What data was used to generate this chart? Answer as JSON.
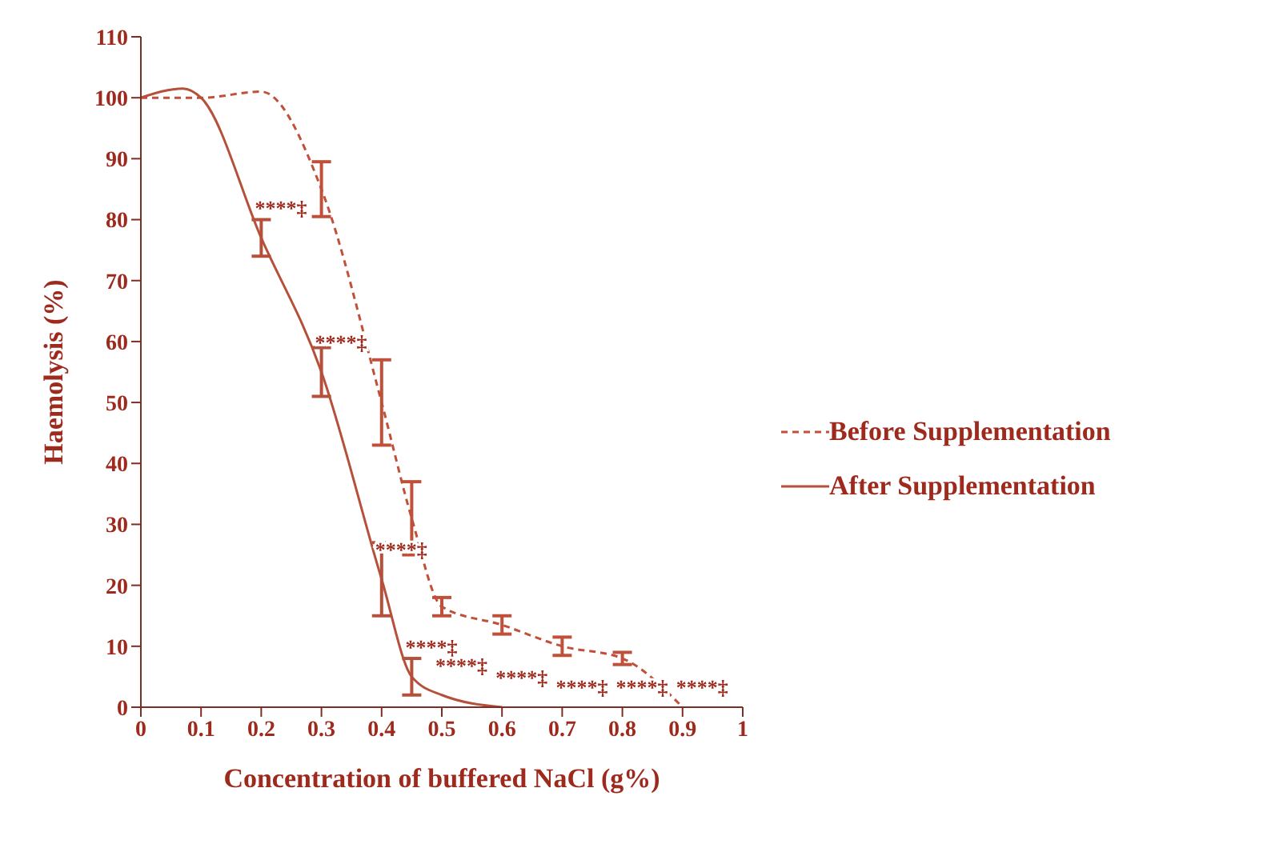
{
  "chart_data": {
    "type": "line",
    "xlabel": "Concentration of buffered NaCl (g%)",
    "ylabel": "Haemolysis (%)",
    "xlim": [
      0,
      1
    ],
    "xticks": [
      0,
      0.1,
      0.2,
      0.3,
      0.4,
      0.5,
      0.6,
      0.7,
      0.8,
      0.9,
      1
    ],
    "ylim": [
      0,
      110
    ],
    "yticks": [
      0,
      10,
      20,
      30,
      40,
      50,
      60,
      70,
      80,
      90,
      100,
      110
    ],
    "grid": false,
    "legend": "right",
    "marker": "none",
    "series": [
      {
        "name": "Before Supplementation",
        "color": "#c0503a",
        "line_style": "dashed",
        "x": [
          0,
          0.1,
          0.2,
          0.3,
          0.4,
          0.45,
          0.5,
          0.6,
          0.7,
          0.8,
          0.9
        ],
        "values": [
          100,
          100,
          101,
          85,
          50,
          31,
          16.5,
          13.5,
          10,
          8,
          0
        ],
        "errors": [
          null,
          null,
          null,
          4.5,
          7,
          6,
          1.5,
          1.5,
          1.5,
          1,
          null
        ]
      },
      {
        "name": "After Supplementation",
        "color": "#b5503a",
        "line_style": "solid",
        "x": [
          0,
          0.07,
          0.1,
          0.2,
          0.3,
          0.4,
          0.45,
          0.5,
          0.6
        ],
        "values": [
          100,
          101.5,
          100,
          77,
          55,
          21,
          5,
          2,
          0
        ],
        "errors": [
          null,
          null,
          null,
          3,
          4,
          6,
          3,
          null,
          null
        ]
      }
    ],
    "annotations": [
      {
        "text": "****‡",
        "x": 0.2,
        "y": 77
      },
      {
        "text": "****‡",
        "x": 0.3,
        "y": 55
      },
      {
        "text": "****‡",
        "x": 0.4,
        "y": 21
      },
      {
        "text": "****‡",
        "x": 0.45,
        "y": 5
      },
      {
        "text": "****‡",
        "x": 0.5,
        "y": 2
      },
      {
        "text": "****‡",
        "x": 0.6,
        "y": 0
      },
      {
        "text": "****‡",
        "x": 0.7,
        "y": 10
      },
      {
        "text": "****‡",
        "x": 0.8,
        "y": 8
      },
      {
        "text": "****‡",
        "x": 0.9,
        "y": 0
      }
    ]
  }
}
